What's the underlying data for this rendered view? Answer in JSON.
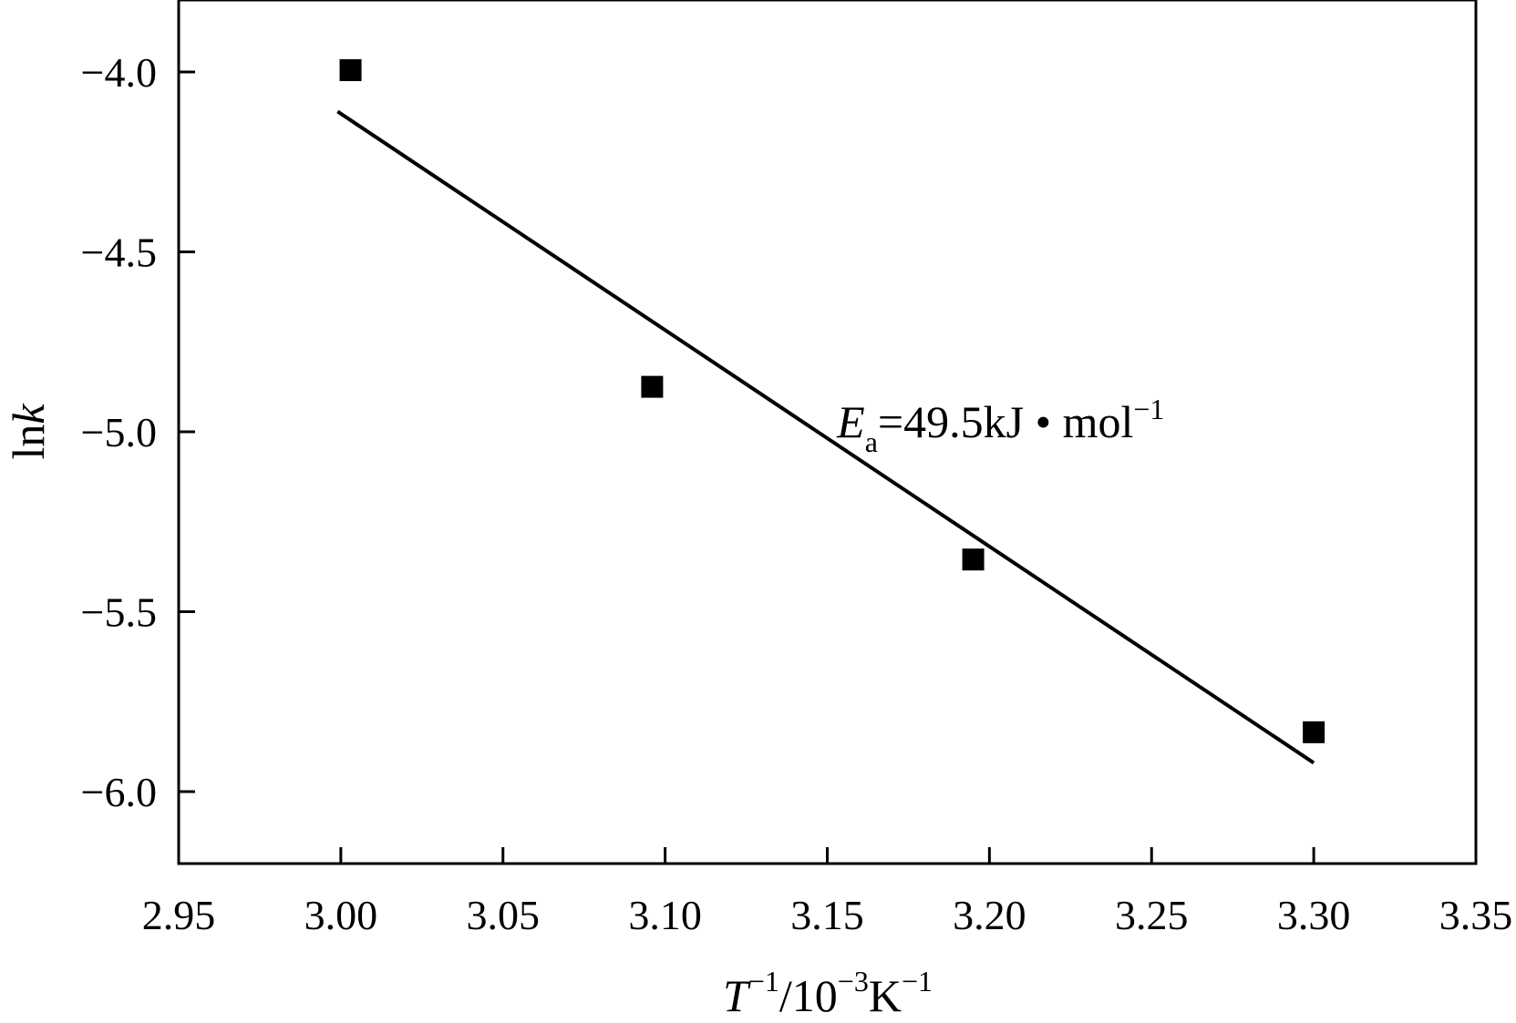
{
  "chart_data": {
    "type": "scatter",
    "title": "",
    "xlabel": {
      "base": "T",
      "base_sup": "−1",
      "sep": "/10",
      "mid_sup": "−3",
      "unit": "K",
      "unit_sup": "−1"
    },
    "ylabel": {
      "prefix": "ln",
      "var": "k"
    },
    "xlim": [
      2.95,
      3.35
    ],
    "ylim": [
      -6.2,
      -3.8
    ],
    "xticks": [
      2.95,
      3.0,
      3.05,
      3.1,
      3.15,
      3.2,
      3.25,
      3.3,
      3.35
    ],
    "xtick_labels": [
      "2.95",
      "3.00",
      "3.05",
      "3.10",
      "3.15",
      "3.20",
      "3.25",
      "3.30",
      "3.35"
    ],
    "yticks": [
      -4.0,
      -4.5,
      -5.0,
      -5.5,
      -6.0
    ],
    "ytick_labels": [
      "−4.0",
      "−4.5",
      "−5.0",
      "−5.5",
      "−6.0"
    ],
    "grid": false,
    "series": [
      {
        "marker": "square",
        "color": "#000000",
        "x": [
          3.003,
          3.096,
          3.195,
          3.3
        ],
        "y": [
          -3.995,
          -4.875,
          -5.355,
          -5.835
        ]
      }
    ],
    "fit_line": {
      "color": "#000000",
      "x": [
        2.999,
        3.3
      ],
      "y": [
        -4.11,
        -5.92
      ]
    },
    "annotation": {
      "var": "E",
      "sub": "a",
      "text": "=49.5kJ • mol",
      "sup": "−1",
      "x": 3.153,
      "y": -4.97
    }
  }
}
